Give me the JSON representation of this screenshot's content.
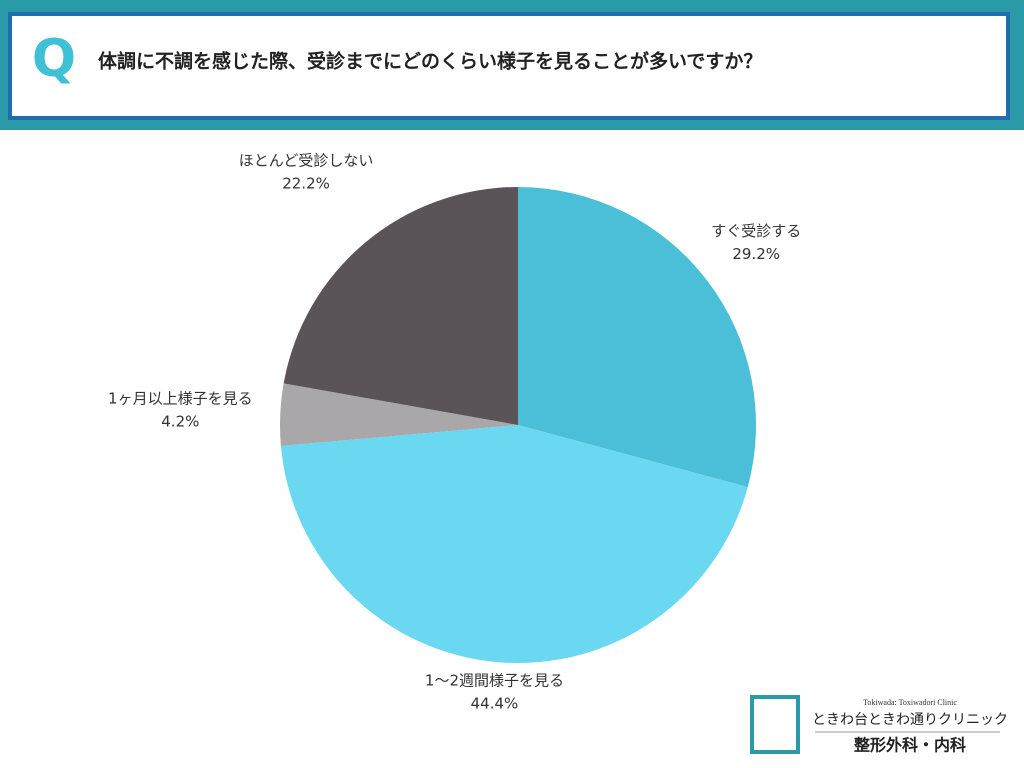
{
  "question_mark": "Q",
  "logo": {
    "english": "Tokiwada: Toxiwadori Clinic",
    "name": "ときわ台ときわ通りクリニック",
    "departments": "整形外科・内科"
  },
  "chart_data": {
    "type": "pie",
    "title": "体調に不調を感じた際、受診までにどのくらい様子を見ることが多いですか？",
    "categories": [
      "すぐ受診する",
      "1〜2週間様子を見る",
      "1ヶ月以上様子を見る",
      "ほとんど受診しない"
    ],
    "values": [
      29.2,
      44.4,
      4.2,
      22.2
    ],
    "value_labels": [
      "29.2%",
      "44.4%",
      "4.2%",
      "22.2%"
    ],
    "colors": [
      "#4bbfd8",
      "#69d8f0",
      "#a9a7aa",
      "#5a5358"
    ]
  }
}
